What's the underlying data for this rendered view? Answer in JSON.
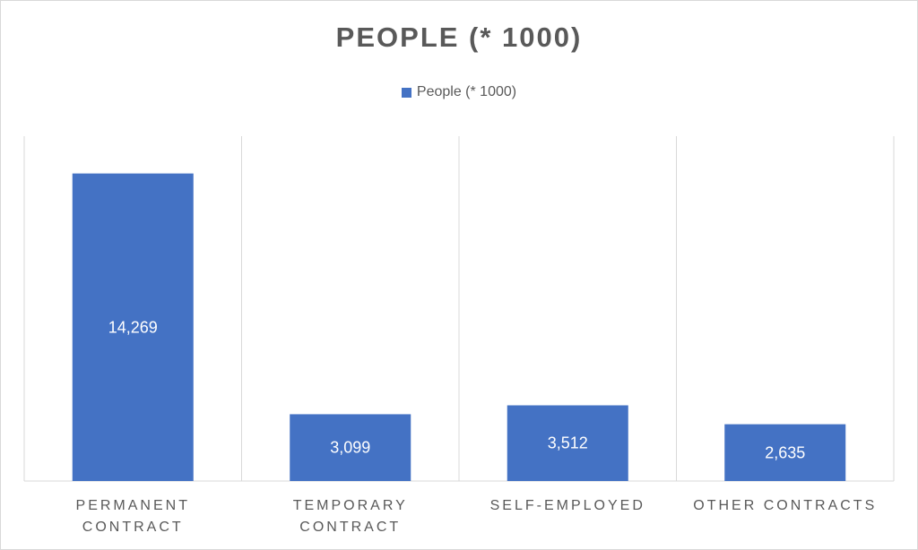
{
  "chart_data": {
    "type": "bar",
    "title": "PEOPLE (* 1000)",
    "categories": [
      [
        "PERMANENT",
        "CONTRACT"
      ],
      [
        "TEMPORARY",
        "CONTRACT"
      ],
      [
        "SELF-EMPLOYED"
      ],
      [
        "OTHER CONTRACTS"
      ]
    ],
    "series": [
      {
        "name": "People (* 1000)",
        "values": [
          14269,
          3099,
          3512,
          2635
        ],
        "labels": [
          "14,269",
          "3,099",
          "3,512",
          "2,635"
        ]
      }
    ],
    "ylim": [
      0,
      16000
    ],
    "grid": "vertical category dividers",
    "legend_position": "top",
    "colors": {
      "bar": "#4472C4",
      "text": "#595959",
      "grid": "#d9d9d9",
      "label": "#ffffff"
    }
  }
}
